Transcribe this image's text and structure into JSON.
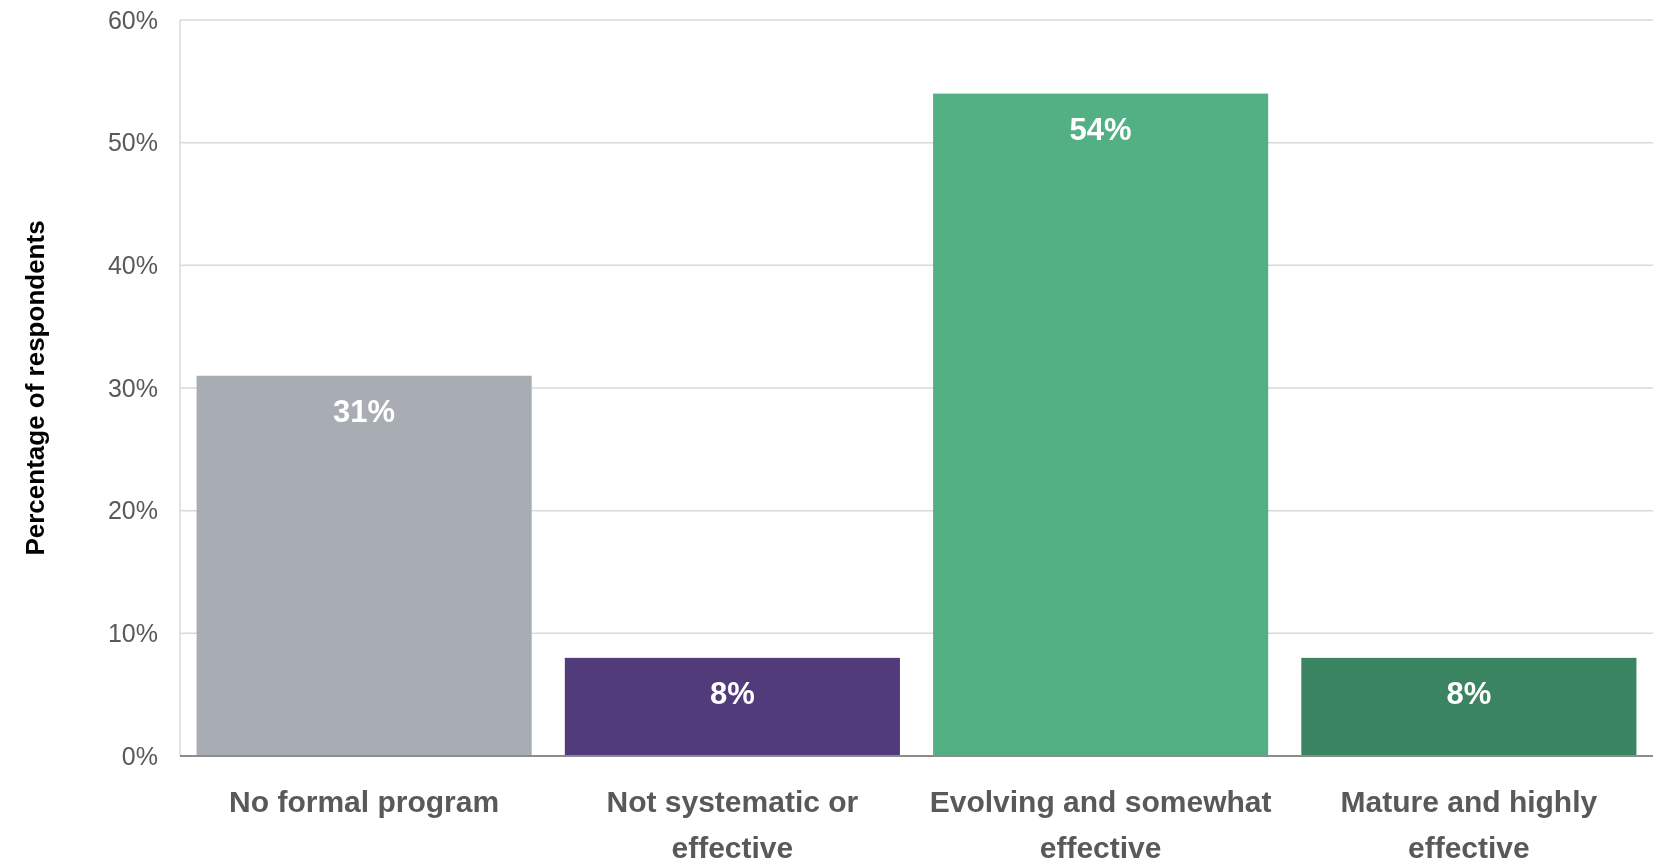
{
  "chart_data": {
    "type": "bar",
    "ylabel": "Percentage of respondents",
    "categories": [
      "No formal program",
      "Not systematic or effective",
      "Evolving and somewhat effective",
      "Mature and highly effective"
    ],
    "values": [
      31,
      8,
      54,
      8
    ],
    "colors": [
      "#a8adb3",
      "#523b7a",
      "#52b084",
      "#3b8462"
    ],
    "value_labels": [
      "31%",
      "8%",
      "54%",
      "8%"
    ],
    "ylim": [
      0,
      60
    ],
    "yticks": [
      {
        "value": 0,
        "label": "0%"
      },
      {
        "value": 10,
        "label": "10%"
      },
      {
        "value": 20,
        "label": "20%"
      },
      {
        "value": 30,
        "label": "30%"
      },
      {
        "value": 40,
        "label": "40%"
      },
      {
        "value": 50,
        "label": "50%"
      },
      {
        "value": 60,
        "label": "60%"
      }
    ],
    "grid": "y"
  }
}
